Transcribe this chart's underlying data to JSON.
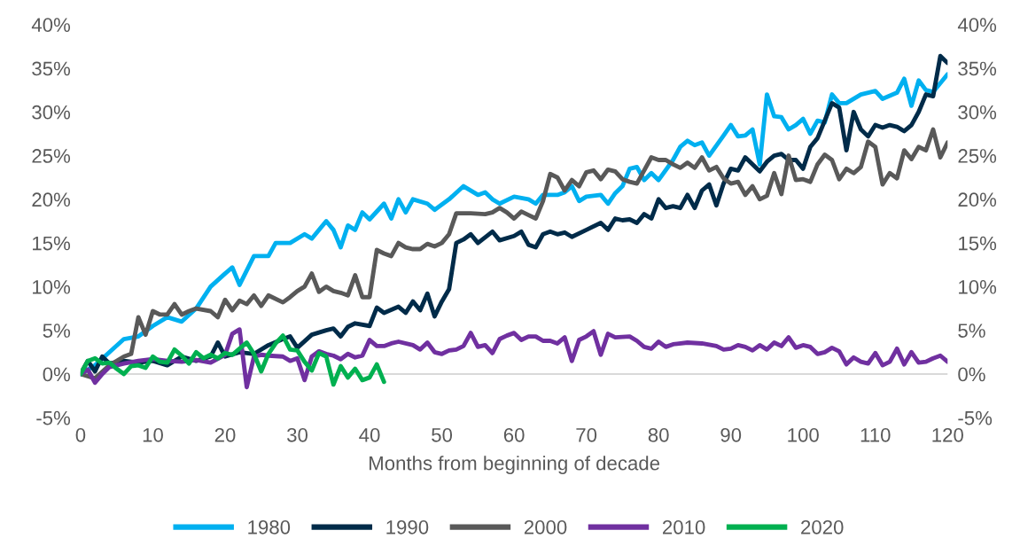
{
  "chart_data": {
    "type": "line",
    "xlabel": "Months from beginning of decade",
    "xlim": [
      0,
      120
    ],
    "xticks": [
      0,
      10,
      20,
      30,
      40,
      50,
      60,
      70,
      80,
      90,
      100,
      110,
      120
    ],
    "ylim": [
      -5,
      40
    ],
    "yticks": [
      {
        "value": -5,
        "label": "-5%"
      },
      {
        "value": 0,
        "label": "0%"
      },
      {
        "value": 5,
        "label": "5%"
      },
      {
        "value": 10,
        "label": "10%"
      },
      {
        "value": 15,
        "label": "15%"
      },
      {
        "value": 20,
        "label": "20%"
      },
      {
        "value": 25,
        "label": "25%"
      },
      {
        "value": 30,
        "label": "30%"
      },
      {
        "value": 35,
        "label": "35%"
      },
      {
        "value": 40,
        "label": "40%"
      }
    ],
    "y2lim": [
      -5,
      40
    ],
    "y2ticks": [
      {
        "value": -5,
        "label": "-5%"
      },
      {
        "value": 0,
        "label": "0%"
      },
      {
        "value": 5,
        "label": "5%"
      },
      {
        "value": 10,
        "label": "10%"
      },
      {
        "value": 15,
        "label": "15%"
      },
      {
        "value": 20,
        "label": "20%"
      },
      {
        "value": 25,
        "label": "25%"
      },
      {
        "value": 30,
        "label": "30%"
      },
      {
        "value": 35,
        "label": "35%"
      },
      {
        "value": 40,
        "label": "40%"
      }
    ],
    "grid": false,
    "legend": "bottom",
    "marker": "none",
    "line_style": "solid",
    "ref_lines": [
      {
        "axis": "y",
        "value": 0,
        "color": "#d9d9d9",
        "line_style": "solid"
      }
    ],
    "series": [
      {
        "name": "1980",
        "color": "#00b0f0",
        "x": [
          0,
          2,
          4,
          6,
          8,
          10,
          12,
          14,
          16,
          18,
          20,
          21,
          22,
          24,
          26,
          27,
          29,
          31,
          32,
          34,
          35,
          36,
          37,
          38,
          39,
          40,
          42,
          43,
          44,
          45,
          46,
          48,
          49,
          51,
          53,
          55,
          56,
          57,
          58,
          60,
          62,
          63,
          64,
          66,
          67,
          68,
          69,
          70,
          72,
          73,
          74,
          75,
          76,
          77,
          78,
          79,
          80,
          82,
          83,
          84,
          85,
          86,
          87,
          89,
          90,
          91,
          92,
          93,
          94,
          95,
          96,
          97,
          98,
          99,
          100,
          101,
          102,
          103,
          104,
          105,
          106,
          108,
          110,
          111,
          113,
          114,
          115,
          116,
          117,
          118,
          119,
          120
        ],
        "values": [
          0,
          1,
          2.5,
          4,
          4.3,
          5.5,
          6.5,
          6,
          7.5,
          10,
          11.5,
          12.2,
          10.2,
          13.5,
          13.5,
          15,
          15,
          16,
          15.5,
          17.5,
          16.5,
          14.5,
          17,
          16.5,
          18.5,
          17.7,
          19.5,
          17.8,
          20,
          18.5,
          20,
          19.5,
          18.8,
          20,
          21.5,
          20.5,
          20.8,
          20,
          19.5,
          20.3,
          20,
          19.5,
          20.5,
          20.5,
          20.8,
          21.5,
          19.8,
          20.3,
          20.5,
          19.5,
          20.7,
          21.5,
          23.5,
          23.7,
          22.2,
          23,
          22.2,
          24.5,
          26,
          26.7,
          26.2,
          26.5,
          25,
          27.3,
          28.5,
          27.2,
          27.3,
          28,
          24,
          32,
          29.5,
          29.4,
          28,
          28.5,
          29.2,
          27.5,
          29,
          28.8,
          32,
          31,
          31,
          32,
          32.4,
          31.5,
          32.2,
          33.8,
          30.7,
          33.6,
          32.5,
          32.3,
          33.3,
          34.3
        ]
      },
      {
        "name": "1990",
        "color": "#002b49",
        "x": [
          0,
          1,
          2,
          3,
          4,
          6,
          8,
          10,
          12,
          14,
          16,
          18,
          19,
          20,
          22,
          24,
          26,
          28,
          29,
          30,
          32,
          34,
          35,
          36,
          37,
          38,
          40,
          41,
          42,
          44,
          45,
          46,
          47,
          48,
          49,
          50,
          51,
          52,
          53,
          54,
          55,
          57,
          58,
          60,
          61,
          62,
          63,
          64,
          65,
          66,
          67,
          68,
          70,
          72,
          73,
          74,
          75,
          76,
          77,
          78,
          79,
          80,
          81,
          82,
          83,
          84,
          85,
          86,
          87,
          88,
          89,
          90,
          91,
          92,
          94,
          95,
          96,
          97,
          98,
          99,
          100,
          101,
          102,
          103,
          104,
          105,
          106,
          107,
          108,
          109,
          110,
          111,
          112,
          113,
          114,
          115,
          116,
          117,
          118,
          119,
          120
        ],
        "values": [
          0,
          1.5,
          0.3,
          2,
          1.2,
          1.5,
          1.3,
          1.5,
          1.0,
          2,
          1.5,
          2,
          3.6,
          2,
          2.5,
          2.3,
          3.3,
          4,
          4.3,
          3,
          4.5,
          5,
          5.2,
          4.3,
          5.4,
          5.8,
          5.5,
          7.6,
          7,
          7.7,
          7,
          8.3,
          7.3,
          9.2,
          6.6,
          8.3,
          9.7,
          15,
          15.4,
          16,
          15,
          16.3,
          15.3,
          15.8,
          16.3,
          14.8,
          14.5,
          16,
          16.3,
          16,
          16.2,
          15.7,
          16.5,
          17.3,
          16.5,
          17.8,
          17.6,
          17.7,
          17.3,
          18.3,
          17.8,
          20,
          19,
          19.2,
          19,
          20.5,
          19,
          21,
          21.7,
          19.3,
          21.8,
          23.5,
          23.3,
          24.8,
          23.2,
          24.3,
          25,
          25.2,
          24.5,
          24.5,
          23.5,
          26,
          27,
          29,
          31,
          30.5,
          25.6,
          30,
          28,
          27.2,
          28.5,
          28.2,
          28.5,
          28.3,
          27.8,
          28.5,
          30,
          32,
          31.8,
          36.4,
          35.6
        ]
      },
      {
        "name": "2000",
        "color": "#595959",
        "x": [
          0,
          2,
          4,
          6,
          7,
          8,
          9,
          10,
          11,
          12,
          13,
          14,
          15,
          16,
          18,
          19,
          20,
          21,
          22,
          23,
          24,
          25,
          26,
          28,
          29,
          30,
          31,
          32,
          33,
          34,
          35,
          36,
          37,
          38,
          39,
          40,
          41,
          42,
          43,
          44,
          45,
          46,
          47,
          48,
          49,
          50,
          51,
          52,
          54,
          56,
          57,
          58,
          59,
          60,
          61,
          62,
          63,
          64,
          65,
          66,
          67,
          68,
          69,
          70,
          71,
          72,
          73,
          74,
          75,
          76,
          77,
          78,
          79,
          80,
          81,
          82,
          83,
          84,
          85,
          86,
          87,
          88,
          89,
          90,
          91,
          92,
          93,
          94,
          95,
          96,
          97,
          98,
          99,
          100,
          101,
          102,
          103,
          104,
          105,
          106,
          107,
          108,
          109,
          110,
          111,
          112,
          113,
          114,
          115,
          116,
          117,
          118,
          119,
          120
        ],
        "values": [
          0,
          -0.5,
          1,
          2,
          2.3,
          6.5,
          4.5,
          7.2,
          6.8,
          6.8,
          8,
          6.8,
          7.2,
          7.5,
          7.2,
          6.5,
          8.5,
          7.3,
          8.4,
          8,
          9,
          7.8,
          9,
          8.2,
          8.8,
          9.5,
          10,
          11.5,
          9.4,
          10,
          9.5,
          9.3,
          9,
          11.3,
          8.8,
          8.8,
          14.2,
          13.8,
          13.5,
          15,
          14.5,
          14.3,
          14.3,
          14.9,
          14.6,
          15,
          16,
          18.4,
          18.4,
          18.3,
          18.5,
          19,
          18.5,
          17.8,
          18.6,
          18.2,
          17.8,
          19.8,
          22.9,
          22.5,
          21,
          22.2,
          21.5,
          23.1,
          23.3,
          22.3,
          23.4,
          23.2,
          22.3,
          22,
          21.8,
          23.3,
          24.8,
          24.5,
          24.5,
          24,
          23.6,
          24.2,
          23.6,
          24.8,
          23.3,
          23.7,
          22.4,
          21.8,
          22,
          20.5,
          21.5,
          20,
          20.4,
          23,
          20.6,
          25,
          22.2,
          22.3,
          22,
          24,
          25.1,
          24.5,
          22.3,
          23.5,
          23,
          23.7,
          26.6,
          26,
          21.7,
          23,
          22.4,
          25.6,
          24.6,
          26,
          25.6,
          28,
          24.8,
          26.5
        ]
      },
      {
        "name": "2010",
        "color": "#7030a0",
        "x": [
          0,
          1,
          2,
          3,
          4,
          6,
          8,
          10,
          12,
          14,
          16,
          18,
          20,
          21,
          22,
          23,
          24,
          25,
          26,
          28,
          29,
          30,
          31,
          32,
          33,
          34,
          35,
          36,
          37,
          38,
          39,
          40,
          41,
          42,
          43,
          44,
          46,
          47,
          48,
          49,
          50,
          51,
          52,
          53,
          54,
          55,
          56,
          57,
          58,
          59,
          60,
          61,
          62,
          63,
          64,
          65,
          66,
          67,
          68,
          69,
          70,
          71,
          72,
          73,
          74,
          76,
          77,
          78,
          79,
          80,
          81,
          82,
          84,
          86,
          88,
          89,
          90,
          91,
          92,
          93,
          94,
          95,
          96,
          97,
          98,
          99,
          100,
          101,
          102,
          103,
          104,
          105,
          106,
          107,
          108,
          109,
          110,
          111,
          112,
          113,
          114,
          115,
          116,
          117,
          118,
          119,
          120
        ],
        "values": [
          0,
          0.5,
          -1,
          0,
          0.8,
          1.2,
          1.5,
          1.7,
          1.5,
          1.4,
          1.6,
          1.3,
          2.2,
          4.6,
          5.1,
          -1.5,
          2,
          2.2,
          2.1,
          2,
          1.5,
          1.8,
          -0.7,
          2,
          2.6,
          2.3,
          2.1,
          1.7,
          2.3,
          1.9,
          2.1,
          3.9,
          3.2,
          3.2,
          3.5,
          3.7,
          3.3,
          2.8,
          3.6,
          2.5,
          2.3,
          2.7,
          2.8,
          3.2,
          4.7,
          3.1,
          3.3,
          2.4,
          4,
          4.4,
          4.7,
          3.9,
          4.3,
          4.3,
          3.8,
          3.8,
          3.5,
          4.2,
          1.5,
          3.9,
          4.3,
          4.9,
          2.2,
          4.6,
          4.2,
          4.3,
          3.8,
          3.1,
          2.9,
          3.7,
          3.1,
          3.4,
          3.6,
          3.5,
          3.2,
          2.8,
          2.9,
          3.3,
          3.1,
          2.7,
          3.3,
          2.8,
          3.6,
          3.2,
          4.2,
          3.0,
          3.3,
          3.1,
          2.3,
          2.5,
          3.0,
          2.6,
          1.1,
          1.9,
          1.4,
          1.2,
          2.4,
          1.0,
          1.4,
          2.9,
          1.1,
          2.5,
          1.3,
          1.4,
          1.8,
          2.1,
          1.4
        ]
      },
      {
        "name": "2020",
        "color": "#00b050",
        "x": [
          0,
          1,
          2,
          3,
          4,
          5,
          6,
          7,
          8,
          9,
          10,
          11,
          12,
          13,
          14,
          15,
          16,
          17,
          18,
          19,
          20,
          21,
          22,
          23,
          24,
          25,
          26,
          27,
          28,
          29,
          30,
          31,
          32,
          33,
          34,
          35,
          36,
          37,
          38,
          39,
          40,
          41,
          42
        ],
        "values": [
          0,
          1.5,
          1.8,
          1.2,
          1.3,
          0.6,
          0,
          0.9,
          1.0,
          0.7,
          2,
          1.4,
          1.3,
          2.8,
          2.1,
          1.2,
          2.5,
          1.8,
          2.2,
          1.8,
          2.4,
          2.2,
          2.9,
          3.6,
          2.3,
          0.3,
          2.3,
          3.5,
          4.4,
          2.8,
          2.7,
          1.4,
          0.4,
          2.4,
          2.0,
          -1.2,
          0.9,
          -0.4,
          0.6,
          -0.7,
          -0.4,
          1.1,
          -0.9
        ]
      }
    ]
  }
}
